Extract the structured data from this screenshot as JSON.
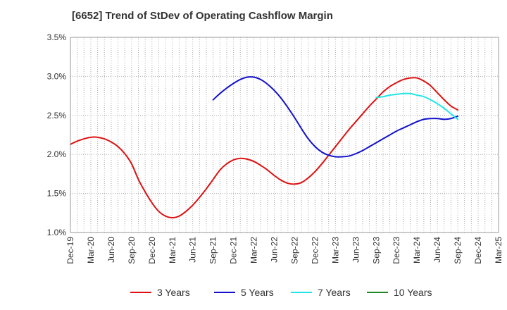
{
  "chart_data": {
    "type": "line",
    "title": "[6652]  Trend of StDev of Operating Cashflow Margin",
    "xlabel": "",
    "ylabel": "",
    "y_tick_labels": [
      "1.0%",
      "1.5%",
      "2.0%",
      "2.5%",
      "3.0%",
      "3.5%"
    ],
    "y_ticks": [
      1.0,
      1.5,
      2.0,
      2.5,
      3.0,
      3.5
    ],
    "ylim": [
      1.0,
      3.5
    ],
    "x_tick_labels": [
      "Dec-19",
      "Mar-20",
      "Jun-20",
      "Sep-20",
      "Dec-20",
      "Mar-21",
      "Jun-21",
      "Sep-21",
      "Dec-21",
      "Mar-22",
      "Jun-22",
      "Sep-22",
      "Dec-22",
      "Mar-23",
      "Jun-23",
      "Sep-23",
      "Dec-23",
      "Mar-24",
      "Jun-24",
      "Sep-24",
      "Dec-24",
      "Mar-25"
    ],
    "grid": true,
    "legend_position": "bottom",
    "series": [
      {
        "name": "3 Years",
        "color": "#dd1111",
        "points": [
          [
            "Dec-19",
            2.13
          ],
          [
            "Jan-20",
            2.17
          ],
          [
            "Feb-20",
            2.2
          ],
          [
            "Mar-20",
            2.22
          ],
          [
            "Apr-20",
            2.22
          ],
          [
            "May-20",
            2.2
          ],
          [
            "Jun-20",
            2.16
          ],
          [
            "Jul-20",
            2.1
          ],
          [
            "Aug-20",
            2.01
          ],
          [
            "Sep-20",
            1.88
          ],
          [
            "Oct-20",
            1.68
          ],
          [
            "Nov-20",
            1.52
          ],
          [
            "Dec-20",
            1.38
          ],
          [
            "Jan-21",
            1.27
          ],
          [
            "Feb-21",
            1.21
          ],
          [
            "Mar-21",
            1.19
          ],
          [
            "Apr-21",
            1.21
          ],
          [
            "May-21",
            1.27
          ],
          [
            "Jun-21",
            1.35
          ],
          [
            "Jul-21",
            1.45
          ],
          [
            "Aug-21",
            1.56
          ],
          [
            "Sep-21",
            1.68
          ],
          [
            "Oct-21",
            1.8
          ],
          [
            "Nov-21",
            1.88
          ],
          [
            "Dec-21",
            1.93
          ],
          [
            "Jan-22",
            1.95
          ],
          [
            "Feb-22",
            1.94
          ],
          [
            "Mar-22",
            1.91
          ],
          [
            "Apr-22",
            1.86
          ],
          [
            "May-22",
            1.8
          ],
          [
            "Jun-22",
            1.73
          ],
          [
            "Jul-22",
            1.67
          ],
          [
            "Aug-22",
            1.63
          ],
          [
            "Sep-22",
            1.62
          ],
          [
            "Oct-22",
            1.64
          ],
          [
            "Nov-22",
            1.7
          ],
          [
            "Dec-22",
            1.78
          ],
          [
            "Jan-23",
            1.88
          ],
          [
            "Feb-23",
            1.99
          ],
          [
            "Mar-23",
            2.1
          ],
          [
            "Apr-23",
            2.21
          ],
          [
            "May-23",
            2.32
          ],
          [
            "Jun-23",
            2.42
          ],
          [
            "Jul-23",
            2.52
          ],
          [
            "Aug-23",
            2.62
          ],
          [
            "Sep-23",
            2.71
          ],
          [
            "Oct-23",
            2.8
          ],
          [
            "Nov-23",
            2.87
          ],
          [
            "Dec-23",
            2.92
          ],
          [
            "Jan-24",
            2.96
          ],
          [
            "Feb-24",
            2.98
          ],
          [
            "Mar-24",
            2.98
          ],
          [
            "Apr-24",
            2.94
          ],
          [
            "May-24",
            2.88
          ],
          [
            "Jun-24",
            2.79
          ],
          [
            "Jul-24",
            2.7
          ],
          [
            "Aug-24",
            2.62
          ],
          [
            "Sep-24",
            2.57
          ]
        ]
      },
      {
        "name": "5 Years",
        "color": "#1111cc",
        "points": [
          [
            "Sep-21",
            2.7
          ],
          [
            "Oct-21",
            2.78
          ],
          [
            "Nov-21",
            2.85
          ],
          [
            "Dec-21",
            2.91
          ],
          [
            "Jan-22",
            2.96
          ],
          [
            "Feb-22",
            2.99
          ],
          [
            "Mar-22",
            2.99
          ],
          [
            "Apr-22",
            2.96
          ],
          [
            "May-22",
            2.9
          ],
          [
            "Jun-22",
            2.82
          ],
          [
            "Jul-22",
            2.72
          ],
          [
            "Aug-22",
            2.6
          ],
          [
            "Sep-22",
            2.47
          ],
          [
            "Oct-22",
            2.33
          ],
          [
            "Nov-22",
            2.2
          ],
          [
            "Dec-22",
            2.1
          ],
          [
            "Jan-23",
            2.03
          ],
          [
            "Feb-23",
            1.99
          ],
          [
            "Mar-23",
            1.97
          ],
          [
            "Apr-23",
            1.97
          ],
          [
            "May-23",
            1.98
          ],
          [
            "Jun-23",
            2.01
          ],
          [
            "Jul-23",
            2.05
          ],
          [
            "Aug-23",
            2.1
          ],
          [
            "Sep-23",
            2.15
          ],
          [
            "Oct-23",
            2.2
          ],
          [
            "Nov-23",
            2.25
          ],
          [
            "Dec-23",
            2.3
          ],
          [
            "Jan-24",
            2.34
          ],
          [
            "Feb-24",
            2.38
          ],
          [
            "Mar-24",
            2.42
          ],
          [
            "Apr-24",
            2.45
          ],
          [
            "May-24",
            2.46
          ],
          [
            "Jun-24",
            2.46
          ],
          [
            "Jul-24",
            2.45
          ],
          [
            "Aug-24",
            2.46
          ],
          [
            "Sep-24",
            2.49
          ]
        ]
      },
      {
        "name": "7 Years",
        "color": "#22e5e5",
        "points": [
          [
            "Sep-23",
            2.73
          ],
          [
            "Oct-23",
            2.74
          ],
          [
            "Nov-23",
            2.76
          ],
          [
            "Dec-23",
            2.77
          ],
          [
            "Jan-24",
            2.78
          ],
          [
            "Feb-24",
            2.78
          ],
          [
            "Mar-24",
            2.76
          ],
          [
            "Apr-24",
            2.74
          ],
          [
            "May-24",
            2.7
          ],
          [
            "Jun-24",
            2.65
          ],
          [
            "Jul-24",
            2.59
          ],
          [
            "Aug-24",
            2.52
          ],
          [
            "Sep-24",
            2.45
          ]
        ]
      },
      {
        "name": "10 Years",
        "color": "#228822",
        "points": []
      }
    ]
  }
}
